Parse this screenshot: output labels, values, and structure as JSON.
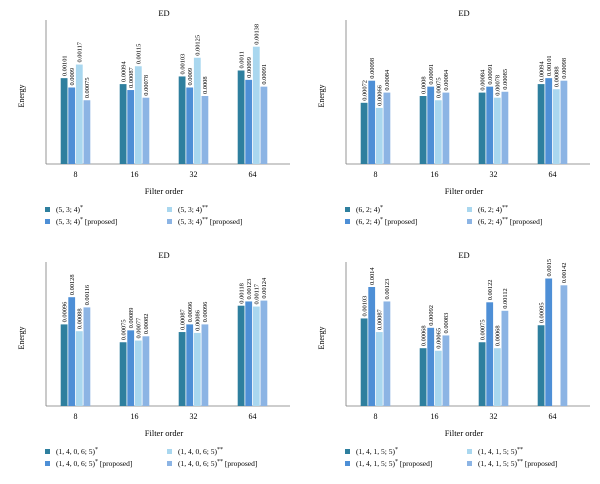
{
  "colors": [
    "#2e7f9e",
    "#4e8fd6",
    "#a9d7ef",
    "#8cb4e4"
  ],
  "chart_data": [
    {
      "type": "bar",
      "title": "ED",
      "xlabel": "Filter order",
      "ylabel": "Energy",
      "ylim": [
        0,
        0.0016
      ],
      "categories": [
        "8",
        "16",
        "32",
        "64"
      ],
      "series": [
        {
          "name": "(5, 3; 4)",
          "sup": "*",
          "suffix": "",
          "values": [
            0.00101,
            0.00094,
            0.00103,
            0.0011
          ],
          "labels": [
            "0.00101",
            "0.00094",
            "0.00103",
            "0.0011"
          ]
        },
        {
          "name": "(5, 3; 4)",
          "sup": "*",
          "suffix": " [proposed]",
          "values": [
            0.0009,
            0.00087,
            0.0009,
            0.00099
          ],
          "labels": [
            "0.0009",
            "0.00087",
            "0.0009",
            "0.00099"
          ]
        },
        {
          "name": "(5, 3; 4)",
          "sup": "**",
          "suffix": "",
          "values": [
            0.00117,
            0.00115,
            0.00125,
            0.00138
          ],
          "labels": [
            "0.00117",
            "0.00115",
            "0.00125",
            "0.00138"
          ]
        },
        {
          "name": "(5, 3; 4)",
          "sup": "**",
          "suffix": " [proposed]",
          "values": [
            0.00075,
            0.00078,
            0.0008,
            0.00091
          ],
          "labels": [
            "0.00075",
            "0.00078",
            "0.0008",
            "0.00091"
          ]
        }
      ]
    },
    {
      "type": "bar",
      "title": "ED",
      "xlabel": "Filter order",
      "ylabel": "Energy",
      "ylim": [
        0,
        0.0016
      ],
      "categories": [
        "8",
        "16",
        "32",
        "64"
      ],
      "series": [
        {
          "name": "(6, 2; 4)",
          "sup": "*",
          "suffix": "",
          "values": [
            0.00072,
            0.0008,
            0.00084,
            0.00094
          ],
          "labels": [
            "0.00072",
            "0.0008",
            "0.00084",
            "0.00094"
          ]
        },
        {
          "name": "(6, 2; 4)",
          "sup": "*",
          "suffix": " [proposed]",
          "values": [
            0.00098,
            0.00091,
            0.00091,
            0.00101
          ],
          "labels": [
            "0.00098",
            "0.00091",
            "0.00091",
            "0.00101"
          ]
        },
        {
          "name": "(6, 2; 4)",
          "sup": "**",
          "suffix": "",
          "values": [
            0.00066,
            0.00075,
            0.00078,
            0.00088
          ],
          "labels": [
            "0.00066",
            "0.00075",
            "0.00078",
            "0.00088"
          ]
        },
        {
          "name": "(6, 2; 4)",
          "sup": "**",
          "suffix": " [proposed]",
          "values": [
            0.00084,
            0.00084,
            0.00085,
            0.00098
          ],
          "labels": [
            "0.00084",
            "0.00084",
            "0.00085",
            "0.00098"
          ]
        }
      ]
    },
    {
      "type": "bar",
      "title": "ED",
      "xlabel": "Filter order",
      "ylabel": "Energy",
      "ylim": [
        0,
        0.0016
      ],
      "categories": [
        "8",
        "16",
        "32",
        "64"
      ],
      "series": [
        {
          "name": "(1, 4, 0, 6; 5)",
          "sup": "*",
          "suffix": "",
          "values": [
            0.00096,
            0.00075,
            0.00087,
            0.00118
          ],
          "labels": [
            "0.00096",
            "0.00075",
            "0.00087",
            "0.00118"
          ]
        },
        {
          "name": "(1, 4, 0, 6; 5)",
          "sup": "*",
          "suffix": " [proposed]",
          "values": [
            0.00128,
            0.00089,
            0.00096,
            0.00123
          ],
          "labels": [
            "0.00128",
            "0.00089",
            "0.00096",
            "0.00123"
          ]
        },
        {
          "name": "(1, 4, 0, 6; 5)",
          "sup": "**",
          "suffix": "",
          "values": [
            0.00088,
            0.00077,
            0.00086,
            0.00117
          ],
          "labels": [
            "0.00088",
            "0.00077",
            "0.00086",
            "0.00117"
          ]
        },
        {
          "name": "(1, 4, 0, 6; 5)",
          "sup": "**",
          "suffix": " [proposed]",
          "values": [
            0.00116,
            0.00082,
            0.00096,
            0.00124
          ],
          "labels": [
            "0.00116",
            "0.00082",
            "0.00096",
            "0.00124"
          ]
        }
      ]
    },
    {
      "type": "bar",
      "title": "ED",
      "xlabel": "Filter order",
      "ylabel": "Energy",
      "ylim": [
        0,
        0.0016
      ],
      "categories": [
        "8",
        "16",
        "32",
        "64"
      ],
      "series": [
        {
          "name": "(1, 4, 1, 5; 5)",
          "sup": "*",
          "suffix": "",
          "values": [
            0.00103,
            0.00068,
            0.00075,
            0.00095
          ],
          "labels": [
            "0.00103",
            "0.00068",
            "0.00075",
            "0.00095"
          ]
        },
        {
          "name": "(1, 4, 1, 5; 5)",
          "sup": "*",
          "suffix": " [proposed]",
          "values": [
            0.0014,
            0.00092,
            0.00122,
            0.0015
          ],
          "labels": [
            "0.0014",
            "0.00092",
            "0.00122",
            "0.0015"
          ]
        },
        {
          "name": "(1, 4, 1, 5; 5)",
          "sup": "**",
          "suffix": "",
          "values": [
            0.00087,
            0.00065,
            0.00068,
            null
          ],
          "labels": [
            "0.00087",
            "0.00065",
            "0.00068",
            ""
          ]
        },
        {
          "name": "(1, 4, 1, 5; 5)",
          "sup": "**",
          "suffix": " [proposed]",
          "values": [
            0.00123,
            0.00083,
            0.00112,
            0.00142
          ],
          "labels": [
            "0.00123",
            "0.00083",
            "0.00112",
            "0.00142"
          ]
        }
      ]
    }
  ]
}
